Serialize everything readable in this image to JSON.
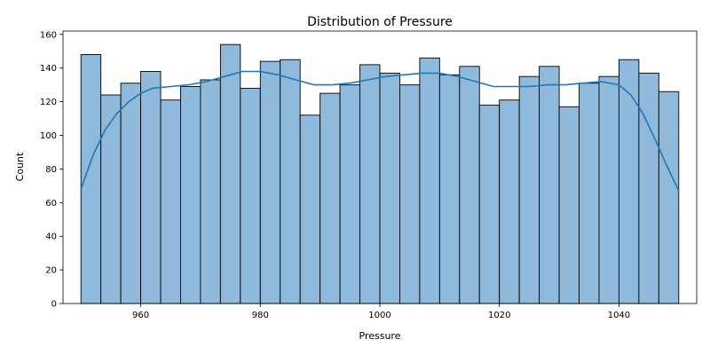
{
  "chart_data": {
    "type": "bar",
    "title": "Distribution of Pressure",
    "xlabel": "Pressure",
    "ylabel": "Count",
    "xlim": [
      947,
      1053
    ],
    "ylim": [
      0,
      162
    ],
    "x_ticks": [
      960,
      980,
      1000,
      1020,
      1040
    ],
    "y_ticks": [
      0,
      20,
      40,
      60,
      80,
      100,
      120,
      140,
      160
    ],
    "bin_start": 950,
    "bin_width": 3.3333,
    "values": [
      148,
      124,
      131,
      138,
      121,
      129,
      133,
      154,
      128,
      144,
      145,
      112,
      125,
      130,
      142,
      137,
      130,
      146,
      136,
      141,
      118,
      121,
      135,
      141,
      117,
      131,
      135,
      145,
      137,
      126
    ],
    "kde": {
      "x": [
        950,
        952,
        954,
        956,
        958,
        960,
        962,
        965,
        968,
        971,
        974,
        977,
        980,
        983,
        986,
        989,
        992,
        995,
        998,
        1001,
        1004,
        1007,
        1010,
        1013,
        1016,
        1019,
        1022,
        1025,
        1028,
        1031,
        1034,
        1037,
        1040,
        1042,
        1044,
        1046,
        1048,
        1050
      ],
      "y": [
        68,
        88,
        103,
        113,
        120,
        125,
        128,
        129,
        130,
        132,
        135,
        138,
        138,
        136,
        133,
        130,
        130,
        131,
        133,
        135,
        136,
        137,
        137,
        135,
        132,
        129,
        129,
        129,
        130,
        130,
        131,
        132,
        130,
        124,
        113,
        98,
        82,
        67
      ]
    },
    "bar_color": "#8fbadb",
    "bar_edge": "#000000",
    "line_color": "#1f77b4",
    "grid": false,
    "legend": "none"
  }
}
